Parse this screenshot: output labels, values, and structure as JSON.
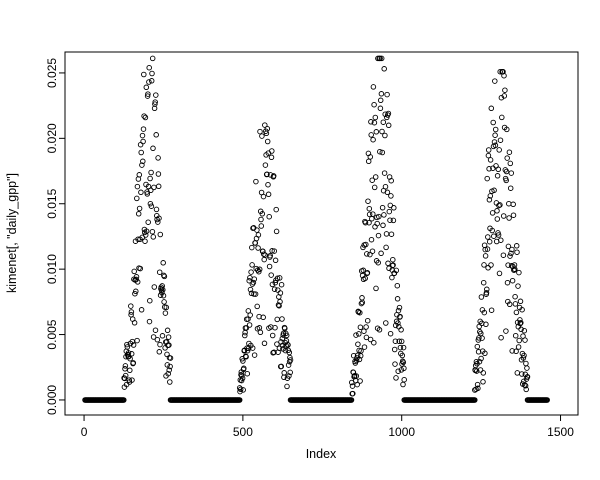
{
  "figure": {
    "background_color": "#ffffff",
    "axis_color": "#000000",
    "point_color": "#000000"
  },
  "chart_data": {
    "type": "scatter",
    "title": "",
    "xlabel": "Index",
    "ylabel": "kimenet[, \"daily_gpp\"]",
    "marker": "open-circle",
    "grid": false,
    "legend": false,
    "xlim": [
      -60,
      1555
    ],
    "ylim": [
      -0.00115,
      0.0266
    ],
    "x_ticks": [
      0,
      500,
      1000,
      1500
    ],
    "y_ticks": [
      0.0,
      0.005,
      0.01,
      0.015,
      0.02,
      0.025
    ],
    "y_tick_decimals": 3,
    "n_points_total": 1460,
    "zero_segments": [
      [
        3,
        126
      ],
      [
        272,
        490
      ],
      [
        650,
        843
      ],
      [
        1008,
        1230
      ],
      [
        1396,
        1458
      ]
    ],
    "peaks": [
      {
        "start": 126,
        "center": 207,
        "end": 272,
        "max": 0.0256
      },
      {
        "start": 490,
        "center": 566,
        "end": 650,
        "max": 0.0206
      },
      {
        "start": 843,
        "center": 930,
        "end": 1008,
        "max": 0.0256
      },
      {
        "start": 1230,
        "center": 1300,
        "end": 1396,
        "max": 0.0246
      }
    ]
  }
}
